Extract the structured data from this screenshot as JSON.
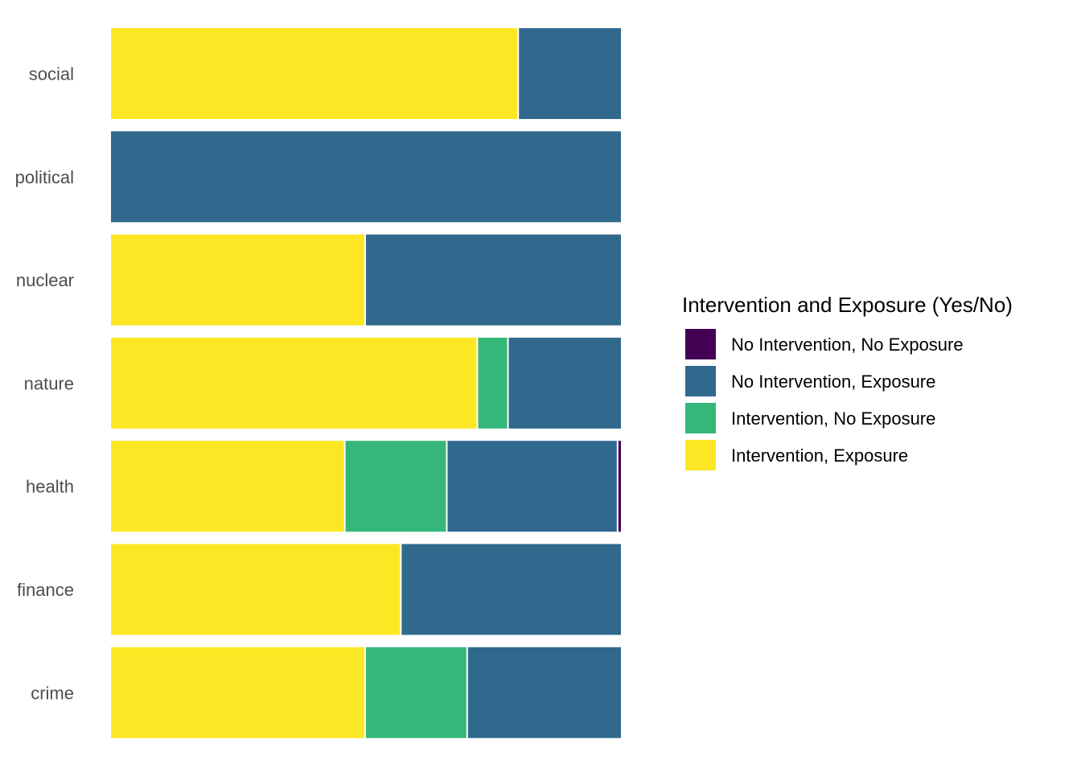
{
  "chart_data": {
    "type": "bar",
    "orientation": "horizontal",
    "stacked": "percent",
    "title": "",
    "xlabel": "",
    "ylabel": "",
    "grid": false,
    "legend_position": "right",
    "xlim": [
      0,
      1
    ],
    "categories": [
      "social",
      "political",
      "nuclear",
      "nature",
      "health",
      "finance",
      "crime"
    ],
    "series": [
      {
        "name": "Intervention, Exposure",
        "color": "#FDE725",
        "values": [
          0.8,
          0.0,
          0.5,
          0.72,
          0.46,
          0.57,
          0.5
        ]
      },
      {
        "name": "Intervention, No Exposure",
        "color": "#35B779",
        "values": [
          0.0,
          0.0,
          0.0,
          0.06,
          0.2,
          0.0,
          0.2
        ]
      },
      {
        "name": "No Intervention, Exposure",
        "color": "#31688E",
        "values": [
          0.2,
          1.0,
          0.5,
          0.22,
          0.335,
          0.43,
          0.3
        ]
      },
      {
        "name": "No Intervention, No Exposure",
        "color": "#440154",
        "values": [
          0.0,
          0.0,
          0.0,
          0.0,
          0.005,
          0.0,
          0.0
        ]
      }
    ],
    "legend": {
      "title": "Intervention and Exposure (Yes/No)",
      "entries": [
        {
          "label": "No Intervention, No Exposure",
          "color": "#440154"
        },
        {
          "label": "No Intervention, Exposure",
          "color": "#31688E"
        },
        {
          "label": "Intervention, No Exposure",
          "color": "#35B779"
        },
        {
          "label": "Intervention, Exposure",
          "color": "#FDE725"
        }
      ]
    }
  }
}
